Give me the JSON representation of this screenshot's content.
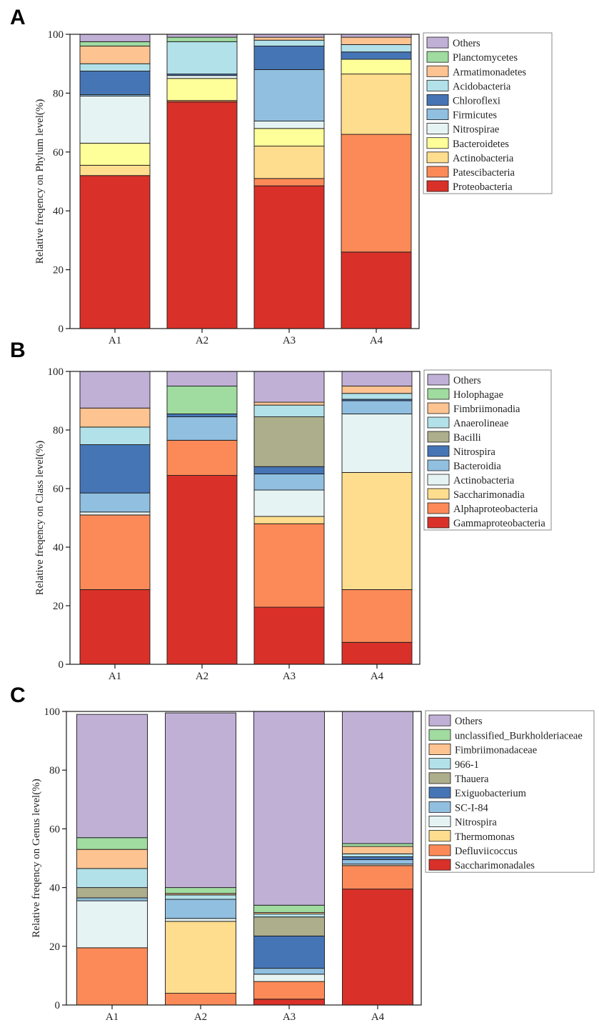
{
  "chart_data": [
    {
      "panel": "A",
      "type": "bar",
      "stacked": true,
      "categories": [
        "A1",
        "A2",
        "A3",
        "A4"
      ],
      "ylabel": "Relative freqency on Phylum level(%)",
      "ylim": [
        0,
        100
      ],
      "yticks": [
        0,
        20,
        40,
        60,
        80,
        100
      ],
      "grid": false,
      "legend_position": "right",
      "series": [
        {
          "name": "Proteobacteria",
          "color": "#d93129",
          "values": [
            52.0,
            77.0,
            48.5,
            26.0
          ]
        },
        {
          "name": "Patescibacteria",
          "color": "#fb8a58",
          "values": [
            0.0,
            0.5,
            2.5,
            40.0
          ]
        },
        {
          "name": "Actinobacteria",
          "color": "#fedd8e",
          "values": [
            3.5,
            0.0,
            11.0,
            20.5
          ]
        },
        {
          "name": "Bacteroidetes",
          "color": "#ffff9a",
          "values": [
            7.5,
            7.5,
            6.0,
            5.0
          ]
        },
        {
          "name": "Nitrospirae",
          "color": "#e6f3f3",
          "values": [
            16.0,
            1.0,
            2.5,
            0.0
          ]
        },
        {
          "name": "Firmicutes",
          "color": "#91bfe0",
          "values": [
            0.5,
            0.0,
            17.5,
            0.0
          ]
        },
        {
          "name": "Chloroflexi",
          "color": "#4675b6",
          "values": [
            8.0,
            0.5,
            8.0,
            2.5
          ]
        },
        {
          "name": "Acidobacteria",
          "color": "#b2e1e9",
          "values": [
            2.5,
            11.0,
            2.0,
            2.5
          ]
        },
        {
          "name": "Armatimonadetes",
          "color": "#fdc391",
          "values": [
            6.0,
            0.0,
            1.0,
            2.5
          ]
        },
        {
          "name": "Planctomycetes",
          "color": "#a0dba0",
          "values": [
            1.5,
            1.5,
            0.0,
            0.0
          ]
        },
        {
          "name": "Others",
          "color": "#c1b0d6",
          "values": [
            2.5,
            1.0,
            1.0,
            1.0
          ]
        }
      ]
    },
    {
      "panel": "B",
      "type": "bar",
      "stacked": true,
      "categories": [
        "A1",
        "A2",
        "A3",
        "A4"
      ],
      "ylabel": "Relative freqency on Class level(%)",
      "ylim": [
        0,
        100
      ],
      "yticks": [
        0,
        20,
        40,
        60,
        80,
        100
      ],
      "grid": false,
      "legend_position": "right",
      "series": [
        {
          "name": "Gammaproteobacteria",
          "color": "#d93129",
          "values": [
            25.5,
            64.5,
            19.5,
            7.5
          ]
        },
        {
          "name": "Alphaproteobacteria",
          "color": "#fb8a58",
          "values": [
            25.5,
            12.0,
            28.5,
            18.0
          ]
        },
        {
          "name": "Saccharimonadia",
          "color": "#fedd8e",
          "values": [
            0.0,
            0.0,
            2.5,
            40.0
          ]
        },
        {
          "name": "Actinobacteria",
          "color": "#e6f3f3",
          "values": [
            1.0,
            0.0,
            9.0,
            20.0
          ]
        },
        {
          "name": "Bacteroidia",
          "color": "#91bfe0",
          "values": [
            6.5,
            8.0,
            5.5,
            4.5
          ]
        },
        {
          "name": "Nitrospira",
          "color": "#4675b6",
          "values": [
            16.5,
            1.0,
            2.5,
            0.5
          ]
        },
        {
          "name": "Bacilli",
          "color": "#adae8c",
          "values": [
            0.0,
            0.0,
            17.0,
            0.0
          ]
        },
        {
          "name": "Anaerolineae",
          "color": "#b2e1e9",
          "values": [
            6.0,
            0.0,
            4.0,
            2.0
          ]
        },
        {
          "name": "Fimbriimonadia",
          "color": "#fdc391",
          "values": [
            6.5,
            0.0,
            1.0,
            2.5
          ]
        },
        {
          "name": "Holophagae",
          "color": "#a0dba0",
          "values": [
            0.0,
            9.5,
            0.0,
            0.0
          ]
        },
        {
          "name": "Others",
          "color": "#c1b0d6",
          "values": [
            12.5,
            5.0,
            10.5,
            5.0
          ]
        }
      ]
    },
    {
      "panel": "C",
      "type": "bar",
      "stacked": true,
      "categories": [
        "A1",
        "A2",
        "A3",
        "A4"
      ],
      "ylabel": "Relative freqency on Genus level(%)",
      "ylim": [
        0,
        100
      ],
      "yticks": [
        0,
        20,
        40,
        60,
        80,
        100
      ],
      "grid": false,
      "legend_position": "right",
      "series": [
        {
          "name": "Saccharimonadales",
          "color": "#d93129",
          "values": [
            0.0,
            0.0,
            2.0,
            39.5
          ]
        },
        {
          "name": "Defluviicoccus",
          "color": "#fb8a58",
          "values": [
            19.5,
            4.0,
            6.0,
            8.0
          ]
        },
        {
          "name": "Thermomonas",
          "color": "#fedd8e",
          "values": [
            0.0,
            24.5,
            0.0,
            0.0
          ]
        },
        {
          "name": "Nitrospira",
          "color": "#e6f3f3",
          "values": [
            16.0,
            1.0,
            2.5,
            0.5
          ]
        },
        {
          "name": "SC-I-84",
          "color": "#91bfe0",
          "values": [
            1.0,
            6.5,
            2.0,
            1.5
          ]
        },
        {
          "name": "Exiguobacterium",
          "color": "#4675b6",
          "values": [
            0.0,
            0.0,
            11.0,
            1.0
          ]
        },
        {
          "name": "Thauera",
          "color": "#adae8c",
          "values": [
            3.5,
            0.0,
            6.5,
            0.0
          ]
        },
        {
          "name": "966-1",
          "color": "#b2e1e9",
          "values": [
            6.5,
            1.5,
            1.0,
            1.0
          ]
        },
        {
          "name": "Fimbriimonadaceae",
          "color": "#fdc391",
          "values": [
            6.5,
            0.5,
            0.5,
            2.5
          ]
        },
        {
          "name": "unclassified_Burkholderiaceae",
          "color": "#a0dba0",
          "values": [
            4.0,
            2.0,
            2.5,
            1.0
          ]
        },
        {
          "name": "Others",
          "color": "#c1b0d6",
          "values": [
            42.0,
            59.5,
            66.0,
            45.0
          ]
        }
      ]
    }
  ]
}
